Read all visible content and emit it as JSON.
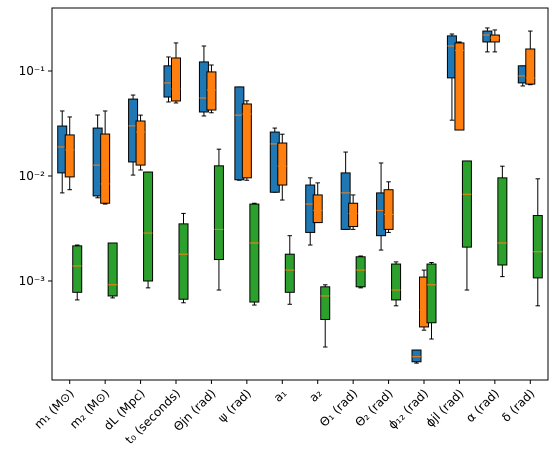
{
  "chart_data": {
    "type": "box",
    "log_y": true,
    "categories": [
      "m₁ (M⊙)",
      "m₂ (M⊙)",
      "dL (Mpc)",
      "t₀ (seconds)",
      "Θjn (rad)",
      "ψ (rad)",
      "a₁",
      "a₂",
      "Θ₁ (rad)",
      "Θ₂ (rad)",
      "ϕ₁₂ (rad)",
      "ϕjl (rad)",
      "α (rad)",
      "δ (rad)"
    ],
    "ylim": [
      0.000114,
      0.398
    ],
    "yticks": [
      {
        "value": 0.001,
        "label": "10⁻³"
      },
      {
        "value": 0.01,
        "label": "10⁻²"
      },
      {
        "value": 0.1,
        "label": "10⁻¹"
      }
    ],
    "series": [
      {
        "color": "#1f77b4",
        "whislo": [
          0.0069,
          0.0062,
          0.0102,
          0.0507,
          0.0373,
          0.0091,
          0.007,
          0.0022,
          0.0031,
          0.00197,
          0.000165,
          0.034,
          0.152,
          0.072
        ],
        "q1": [
          0.0107,
          0.00646,
          0.0136,
          0.0565,
          0.0407,
          0.0092,
          0.007,
          0.0029,
          0.0031,
          0.0027,
          0.00017,
          0.086,
          0.189,
          0.077
        ],
        "median": [
          0.0189,
          0.0127,
          0.03,
          0.0769,
          0.0553,
          0.038,
          0.0202,
          0.0054,
          0.0069,
          0.0047,
          0.00019,
          0.173,
          0.22,
          0.0897
        ],
        "q3": [
          0.0299,
          0.0286,
          0.054,
          0.112,
          0.122,
          0.0705,
          0.0262,
          0.0082,
          0.0107,
          0.0069,
          0.00022,
          0.216,
          0.24,
          0.112
        ],
        "whishi": [
          0.0416,
          0.0381,
          0.059,
          0.136,
          0.173,
          0.0705,
          0.0286,
          0.0096,
          0.0169,
          0.0133,
          0.00022,
          0.225,
          0.257,
          0.112
        ]
      },
      {
        "color": "#ff7f0e",
        "whislo": [
          0.0074,
          0.0054,
          0.0114,
          0.0496,
          0.04,
          0.0091,
          0.0059,
          0.0036,
          0.0031,
          0.0029,
          0.00034,
          0.0274,
          0.152,
          0.074
        ],
        "q1": [
          0.0098,
          0.0055,
          0.0127,
          0.0518,
          0.0425,
          0.0096,
          0.0082,
          0.0036,
          0.0033,
          0.0031,
          0.000365,
          0.0274,
          0.189,
          0.075
        ],
        "median": [
          0.0177,
          0.0084,
          0.0262,
          0.0674,
          0.0659,
          0.039,
          0.0124,
          0.0047,
          0.0044,
          0.0043,
          0.00053,
          0.157,
          0.206,
          0.0858
        ],
        "q3": [
          0.0246,
          0.0251,
          0.0334,
          0.133,
          0.098,
          0.0485,
          0.0206,
          0.0066,
          0.0055,
          0.0074,
          0.00109,
          0.185,
          0.22,
          0.162
        ],
        "whishi": [
          0.0365,
          0.0416,
          0.038,
          0.185,
          0.114,
          0.052,
          0.025,
          0.0086,
          0.0066,
          0.0088,
          0.00127,
          0.189,
          0.246,
          0.24
        ]
      },
      {
        "color": "#2ca02c",
        "whislo": [
          0.00066,
          0.00069,
          0.00086,
          0.00062,
          0.00082,
          0.00059,
          0.0006,
          0.000235,
          0.00086,
          0.00058,
          0.00028,
          0.00082,
          0.0011,
          0.00058
        ],
        "q1": [
          0.00078,
          0.00072,
          0.001,
          0.00067,
          0.0016,
          0.00063,
          0.00078,
          0.00043,
          0.00088,
          0.00066,
          0.0004,
          0.0021,
          0.00142,
          0.00107
        ],
        "median": [
          0.00139,
          0.00092,
          0.00286,
          0.0018,
          0.0031,
          0.0023,
          0.00127,
          0.00072,
          0.00127,
          0.00082,
          0.00092,
          0.0067,
          0.0023,
          0.0019
        ],
        "q3": [
          0.00216,
          0.0023,
          0.0109,
          0.0035,
          0.0125,
          0.0054,
          0.0018,
          0.00088,
          0.0017,
          0.00145,
          0.00145,
          0.0139,
          0.0096,
          0.0042
        ],
        "whishi": [
          0.0022,
          0.0023,
          0.0109,
          0.0044,
          0.018,
          0.0055,
          0.0027,
          0.00092,
          0.00173,
          0.00152,
          0.0015,
          0.0139,
          0.0124,
          0.0094
        ]
      }
    ]
  }
}
